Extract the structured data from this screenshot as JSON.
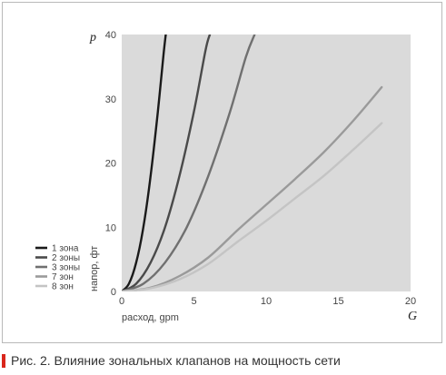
{
  "chart_data": {
    "type": "line",
    "y_var": "p",
    "x_var": "G",
    "xlabel": "расход, gpm",
    "ylabel": "напор, фт",
    "xlim": [
      0,
      20
    ],
    "ylim": [
      0,
      40
    ],
    "xticks": [
      0,
      5,
      10,
      15,
      20
    ],
    "yticks": [
      0,
      10,
      20,
      30,
      40
    ],
    "grid": false,
    "legend_position": "bottom-left",
    "background_color": "#dadada",
    "series": [
      {
        "name": "1 зона",
        "color": "#1a1a1a",
        "points": [
          [
            0,
            0
          ],
          [
            0.5,
            1.2
          ],
          [
            1,
            4.5
          ],
          [
            1.5,
            10
          ],
          [
            2,
            18
          ],
          [
            2.5,
            28
          ],
          [
            2.9,
            37
          ],
          [
            3.05,
            40
          ]
        ]
      },
      {
        "name": "2 зоны",
        "color": "#4a4a4a",
        "points": [
          [
            0,
            0
          ],
          [
            1,
            1.2
          ],
          [
            2,
            4.5
          ],
          [
            3,
            10
          ],
          [
            4,
            18
          ],
          [
            5,
            28
          ],
          [
            5.8,
            37.5
          ],
          [
            6.1,
            40
          ]
        ]
      },
      {
        "name": "3 зоны",
        "color": "#707070",
        "points": [
          [
            0,
            0
          ],
          [
            1.5,
            1.2
          ],
          [
            3,
            4.5
          ],
          [
            4.5,
            10
          ],
          [
            6,
            18
          ],
          [
            7.5,
            28
          ],
          [
            8.6,
            36.5
          ],
          [
            9.2,
            40
          ]
        ]
      },
      {
        "name": "7 зон",
        "color": "#9a9a9a",
        "points": [
          [
            0,
            0
          ],
          [
            2,
            0.6
          ],
          [
            4,
            2.4
          ],
          [
            6,
            5.3
          ],
          [
            8,
            9.5
          ],
          [
            10,
            13.5
          ],
          [
            12,
            17.5
          ],
          [
            14,
            21.7
          ],
          [
            16,
            26.5
          ],
          [
            18,
            31.8
          ]
        ]
      },
      {
        "name": "8 зон",
        "color": "#c4c4c4",
        "points": [
          [
            0,
            0
          ],
          [
            2,
            0.5
          ],
          [
            4,
            1.9
          ],
          [
            6,
            4.3
          ],
          [
            8,
            7.7
          ],
          [
            10,
            11
          ],
          [
            12,
            14.5
          ],
          [
            14,
            18
          ],
          [
            16,
            22
          ],
          [
            18,
            26.2
          ]
        ]
      }
    ]
  },
  "caption": {
    "text": "Рис. 2. Влияние зональных клапанов на мощность сети",
    "marker_color": "#d9261c"
  }
}
